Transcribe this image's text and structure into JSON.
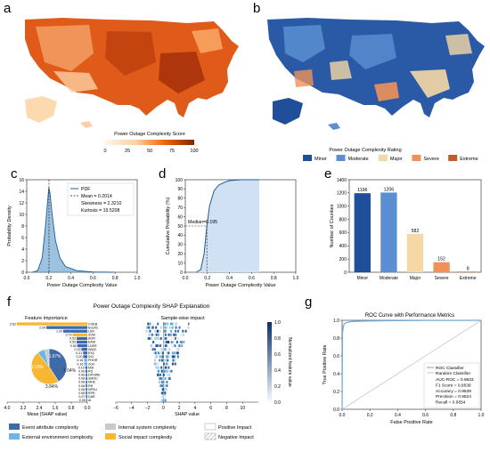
{
  "panel_labels": {
    "a": "a",
    "b": "b",
    "c": "c",
    "d": "d",
    "e": "e",
    "f": "f",
    "g": "g"
  },
  "colors": {
    "minor": "#1f4e9b",
    "moderate": "#5b8fd1",
    "major": "#f6d8a6",
    "severe": "#f0915a",
    "extreme": "#c45a2a",
    "pdf": "#4b8fc6",
    "roc": "#6fa8dc",
    "random": "#c8c8c8",
    "event": "#3d6aa8",
    "external": "#6fb5e6",
    "internal": "#c9c9c9",
    "social": "#f7b733"
  },
  "panel_a": {
    "colorbar_title": "Power Outage Complexity Score",
    "colorbar_ticks": [
      "0",
      "25",
      "50",
      "75",
      "100"
    ]
  },
  "panel_b": {
    "legend_title": "Power Outage Complexity Rating",
    "legend_items": [
      "Minor",
      "Moderate",
      "Major",
      "Severe",
      "Extreme"
    ]
  },
  "chart_data": [
    {
      "id": "c",
      "type": "line",
      "xlabel": "Power Outage Complexity Value",
      "ylabel": "Probability Density",
      "xlim": [
        0,
        1
      ],
      "ylim": [
        0,
        16
      ],
      "xticks": [
        "0.0",
        "0.2",
        "0.4",
        "0.6",
        "0.8",
        "1.0"
      ],
      "yticks": [
        "0",
        "2",
        "4",
        "6",
        "8",
        "10",
        "12",
        "14",
        "16"
      ],
      "series": [
        {
          "name": "PDF",
          "x": [
            0.05,
            0.1,
            0.14,
            0.17,
            0.19,
            0.2,
            0.21,
            0.23,
            0.26,
            0.3,
            0.35,
            0.45,
            0.6,
            0.8
          ],
          "y": [
            0,
            0.3,
            2.5,
            8,
            12.5,
            14.6,
            13.8,
            10,
            5.5,
            2.5,
            1,
            0.3,
            0.05,
            0
          ]
        }
      ],
      "stats": [
        "Mean = 0.2014",
        "Skewness = 2.3210",
        "Kurtosis = 19.5208"
      ],
      "mean": 0.2014
    },
    {
      "id": "d",
      "type": "area",
      "xlabel": "Power Outage Complexity Value",
      "ylabel": "Cumulative Probability (%)",
      "xlim": [
        0,
        1
      ],
      "ylim": [
        0,
        100
      ],
      "xticks": [
        "0.0",
        "0.2",
        "0.4",
        "0.6",
        "0.8",
        "1.0"
      ],
      "yticks": [
        "0",
        "10",
        "20",
        "30",
        "40",
        "50",
        "60",
        "70",
        "80",
        "90",
        "100"
      ],
      "series": [
        {
          "name": "CDF",
          "x": [
            0.1,
            0.14,
            0.17,
            0.195,
            0.22,
            0.26,
            0.3,
            0.35,
            0.4,
            0.5,
            0.67
          ],
          "y": [
            0,
            3,
            20,
            50,
            72,
            88,
            94,
            97,
            99,
            100,
            100
          ]
        }
      ],
      "annotation": "Median=0.195",
      "median": 0.195
    },
    {
      "id": "e",
      "type": "bar",
      "xlabel": "",
      "ylabel": "Number of Counties",
      "ylim": [
        0,
        1400
      ],
      "yticks": [
        "0",
        "200",
        "400",
        "600",
        "800",
        "1000",
        "1200",
        "1400"
      ],
      "categories": [
        "Minor",
        "Moderate",
        "Major",
        "Severe",
        "Extreme"
      ],
      "values": [
        1196,
        1206,
        582,
        152,
        8
      ]
    },
    {
      "id": "f_importance",
      "type": "bar",
      "title": "Power Outage Complexity SHAP Explanation",
      "subtitle": "Feature importance",
      "xlabel": "Mean |SHAP value|",
      "xlim": [
        4.0,
        0
      ],
      "xticks": [
        "4.0",
        "3.2",
        "2.4",
        "1.6",
        "0.8",
        "0.0"
      ],
      "categories": [
        "COEB",
        "Events",
        "LER",
        "SVEI",
        "AOR",
        "EADI",
        "LDER",
        "WWC",
        "ESC",
        "DCI",
        "PHOR",
        "ZGV",
        "MSI",
        "RS",
        "DPOWE",
        "SMOC",
        "MHE",
        "RR",
        "NPSU",
        "RPR",
        "DAR",
        "AI"
      ],
      "values": [
        3.52,
        2.04,
        1.2,
        0.73,
        0.53,
        0.53,
        0.5,
        0.29,
        0.21,
        0.2,
        0.16,
        0.16,
        0.1,
        0.09,
        0.08,
        0.08,
        0.08,
        0.08,
        0.08,
        0.08,
        0.07,
        0.05
      ],
      "value_labels": [
        "3.52",
        "2.04",
        "1.20",
        "0.73",
        "0.53",
        "0.53",
        "0.50",
        "0.29",
        "0.21",
        "0.20",
        "0.16",
        "0.16",
        "0.10",
        "0.09",
        "0.08",
        "0.08",
        "0.08",
        "0.08",
        "0.08",
        "0.08",
        "0.07",
        "0.05"
      ],
      "groups": [
        "social",
        "event",
        "event",
        "social",
        "event",
        "event",
        "event",
        "event",
        "event",
        "event",
        "external",
        "external",
        "event",
        "event",
        "event",
        "event",
        "event",
        "event",
        "event",
        "event",
        "event",
        "event"
      ],
      "pie": {
        "type": "pie",
        "values": [
          40.97,
          48.19,
          7.04,
          3.84
        ],
        "labels": [
          "40.97%",
          "48.19%",
          "7.04%",
          "3.84%"
        ],
        "groups": [
          "event",
          "social",
          "external",
          "internal"
        ]
      }
    },
    {
      "id": "f_shap",
      "type": "scatter",
      "subtitle": "Sample-wise impact",
      "xlabel": "SHAP value",
      "xlim": [
        -6,
        12
      ],
      "xticks": [
        "−6",
        "−4",
        "−2",
        "0",
        "2",
        "4",
        "6",
        "8",
        "10"
      ],
      "colorbar_label": "Normalized feature value",
      "colorbar_ticks": [
        "0.0",
        "0.2",
        "0.4",
        "0.6",
        "0.8",
        "1.0"
      ]
    },
    {
      "id": "g",
      "type": "line",
      "title": "ROC Curve with Performance Metrics",
      "xlabel": "False Positive Rate",
      "ylabel": "True Positive Rate",
      "xlim": [
        0,
        1
      ],
      "ylim": [
        0,
        1
      ],
      "xticks": [
        "0.0",
        "0.2",
        "0.4",
        "0.6",
        "0.8",
        "1.0"
      ],
      "yticks": [
        "0.0",
        "0.2",
        "0.4",
        "0.6",
        "0.8",
        "1.0"
      ],
      "series": [
        {
          "name": "ROC Classifier",
          "x": [
            0,
            0.003,
            0.008,
            0.015,
            0.03,
            0.06,
            0.12,
            0.3,
            0.6,
            1.0
          ],
          "y": [
            0,
            0.85,
            0.93,
            0.96,
            0.975,
            0.985,
            0.99,
            0.995,
            0.998,
            1.0
          ]
        },
        {
          "name": "Random Classifier",
          "x": [
            0,
            1
          ],
          "y": [
            0,
            1
          ]
        }
      ],
      "metrics": [
        "AUC-ROC = 0.9833",
        "F1 Score = 0.9539",
        "Accuracy = 0.9539",
        "Precision = 0.9524",
        "Recall = 0.9554"
      ]
    }
  ],
  "f_legend": {
    "event": "Event attribute complexity",
    "external": "External environment complexity",
    "internal": "Internal system complexity",
    "social": "Social impact complexity",
    "positive": "Positive Impact",
    "negative": "Negative Impact"
  }
}
